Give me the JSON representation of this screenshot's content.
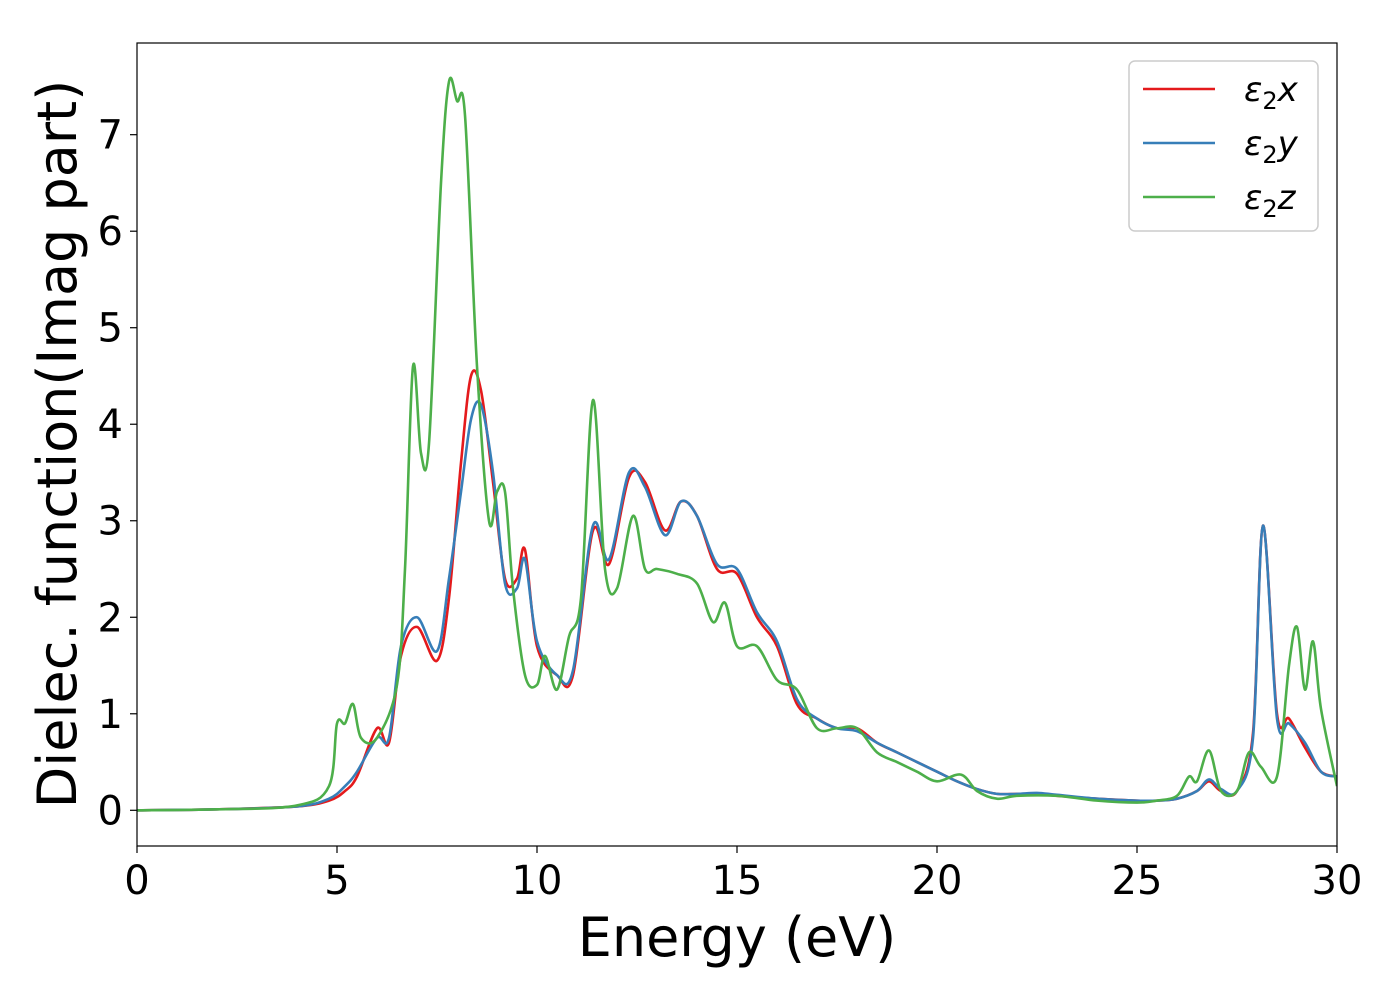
{
  "chart_data": {
    "type": "line",
    "title": "",
    "xlabel": "Energy (eV)",
    "ylabel": "Dielec. function(Imag part)",
    "xlim": [
      0,
      30
    ],
    "ylim": [
      -0.37,
      7.95
    ],
    "xticks": [
      0,
      5,
      10,
      15,
      20,
      25,
      30
    ],
    "xtick_labels": [
      "0",
      "5",
      "10",
      "15",
      "20",
      "25",
      "30"
    ],
    "yticks": [
      0,
      1,
      2,
      3,
      4,
      5,
      6,
      7
    ],
    "ytick_labels": [
      "0",
      "1",
      "2",
      "3",
      "4",
      "5",
      "6",
      "7"
    ],
    "grid": false,
    "legend_position": "top-right",
    "series": [
      {
        "name": "ε2x",
        "legend_base": "ε",
        "legend_sub": "2",
        "legend_suffix": "x",
        "color": "#e41a1c",
        "x": [
          0,
          2,
          4,
          4.8,
          5.2,
          5.5,
          6.0,
          6.3,
          6.6,
          7.0,
          7.5,
          7.8,
          8.1,
          8.35,
          8.6,
          8.9,
          9.2,
          9.5,
          9.7,
          10.0,
          10.5,
          10.9,
          11.4,
          11.8,
          12.3,
          12.7,
          13.2,
          13.6,
          14.0,
          14.5,
          15.0,
          15.5,
          16.0,
          16.5,
          17.0,
          17.5,
          18.0,
          18.5,
          19.0,
          19.5,
          20.0,
          20.5,
          21.0,
          21.5,
          22.0,
          22.5,
          23.0,
          24.0,
          25.0,
          25.5,
          26.0,
          26.5,
          26.8,
          27.1,
          27.5,
          27.9,
          28.15,
          28.5,
          28.8,
          29.2,
          29.6,
          30.0
        ],
        "y": [
          0.0,
          0.01,
          0.04,
          0.1,
          0.2,
          0.35,
          0.85,
          0.7,
          1.6,
          1.9,
          1.55,
          2.2,
          3.6,
          4.5,
          4.35,
          3.4,
          2.4,
          2.4,
          2.7,
          1.7,
          1.4,
          1.4,
          2.9,
          2.55,
          3.45,
          3.4,
          2.9,
          3.2,
          3.05,
          2.5,
          2.45,
          2.0,
          1.7,
          1.1,
          0.95,
          0.85,
          0.85,
          0.7,
          0.6,
          0.5,
          0.4,
          0.3,
          0.22,
          0.17,
          0.17,
          0.17,
          0.15,
          0.12,
          0.1,
          0.1,
          0.12,
          0.2,
          0.3,
          0.2,
          0.2,
          0.8,
          2.95,
          1.0,
          0.95,
          0.65,
          0.4,
          0.35
        ]
      },
      {
        "name": "ε2y",
        "legend_base": "ε",
        "legend_sub": "2",
        "legend_suffix": "y",
        "color": "#377eb8",
        "x": [
          0,
          2,
          4,
          4.8,
          5.2,
          5.5,
          6.0,
          6.3,
          6.6,
          7.0,
          7.5,
          7.8,
          8.1,
          8.35,
          8.6,
          8.9,
          9.2,
          9.5,
          9.7,
          10.0,
          10.5,
          10.9,
          11.4,
          11.8,
          12.3,
          12.7,
          13.2,
          13.6,
          14.0,
          14.5,
          15.0,
          15.5,
          16.0,
          16.5,
          17.0,
          17.5,
          18.0,
          18.5,
          19.0,
          19.5,
          20.0,
          20.5,
          21.0,
          21.5,
          22.0,
          22.5,
          23.0,
          24.0,
          25.0,
          25.5,
          26.0,
          26.5,
          26.8,
          27.1,
          27.5,
          27.9,
          28.15,
          28.5,
          28.8,
          29.2,
          29.6,
          30.0
        ],
        "y": [
          0.0,
          0.01,
          0.04,
          0.12,
          0.25,
          0.4,
          0.75,
          0.75,
          1.7,
          2.0,
          1.65,
          2.4,
          3.3,
          4.05,
          4.2,
          3.5,
          2.35,
          2.3,
          2.6,
          1.75,
          1.4,
          1.45,
          2.95,
          2.6,
          3.5,
          3.35,
          2.85,
          3.2,
          3.05,
          2.55,
          2.5,
          2.05,
          1.75,
          1.15,
          0.95,
          0.85,
          0.82,
          0.7,
          0.6,
          0.5,
          0.4,
          0.3,
          0.22,
          0.17,
          0.17,
          0.18,
          0.16,
          0.12,
          0.1,
          0.1,
          0.12,
          0.2,
          0.32,
          0.22,
          0.2,
          0.75,
          2.95,
          0.95,
          0.9,
          0.7,
          0.4,
          0.35
        ]
      },
      {
        "name": "ε2z",
        "legend_base": "ε",
        "legend_sub": "2",
        "legend_suffix": "z",
        "color": "#4daf4a",
        "x": [
          0,
          2,
          4,
          4.8,
          5.0,
          5.2,
          5.4,
          5.6,
          6.0,
          6.5,
          6.7,
          6.9,
          7.1,
          7.3,
          7.6,
          7.8,
          8.0,
          8.2,
          8.5,
          8.8,
          9.0,
          9.2,
          9.4,
          9.7,
          10.0,
          10.2,
          10.5,
          10.8,
          11.1,
          11.4,
          11.7,
          12.0,
          12.4,
          12.7,
          13.0,
          13.5,
          14.0,
          14.4,
          14.7,
          15.0,
          15.5,
          16.0,
          16.5,
          17.0,
          17.5,
          18.0,
          18.5,
          19.0,
          19.5,
          20.0,
          20.6,
          21.0,
          21.5,
          22.0,
          23.0,
          24.0,
          25.0,
          25.5,
          26.0,
          26.3,
          26.5,
          26.8,
          27.1,
          27.5,
          27.8,
          28.1,
          28.5,
          28.8,
          29.0,
          29.2,
          29.4,
          29.6,
          30.0
        ],
        "y": [
          0.0,
          0.01,
          0.05,
          0.25,
          0.9,
          0.9,
          1.1,
          0.75,
          0.75,
          1.3,
          2.5,
          4.6,
          3.7,
          3.8,
          6.5,
          7.55,
          7.35,
          7.2,
          4.6,
          3.0,
          3.3,
          3.3,
          2.3,
          1.4,
          1.3,
          1.6,
          1.25,
          1.8,
          2.2,
          4.25,
          2.5,
          2.3,
          3.05,
          2.5,
          2.5,
          2.45,
          2.35,
          1.95,
          2.15,
          1.7,
          1.7,
          1.35,
          1.25,
          0.85,
          0.85,
          0.85,
          0.6,
          0.5,
          0.4,
          0.3,
          0.37,
          0.2,
          0.12,
          0.15,
          0.15,
          0.1,
          0.08,
          0.1,
          0.15,
          0.35,
          0.3,
          0.62,
          0.2,
          0.2,
          0.6,
          0.45,
          0.35,
          1.5,
          1.9,
          1.25,
          1.75,
          1.05,
          0.25
        ]
      }
    ]
  }
}
